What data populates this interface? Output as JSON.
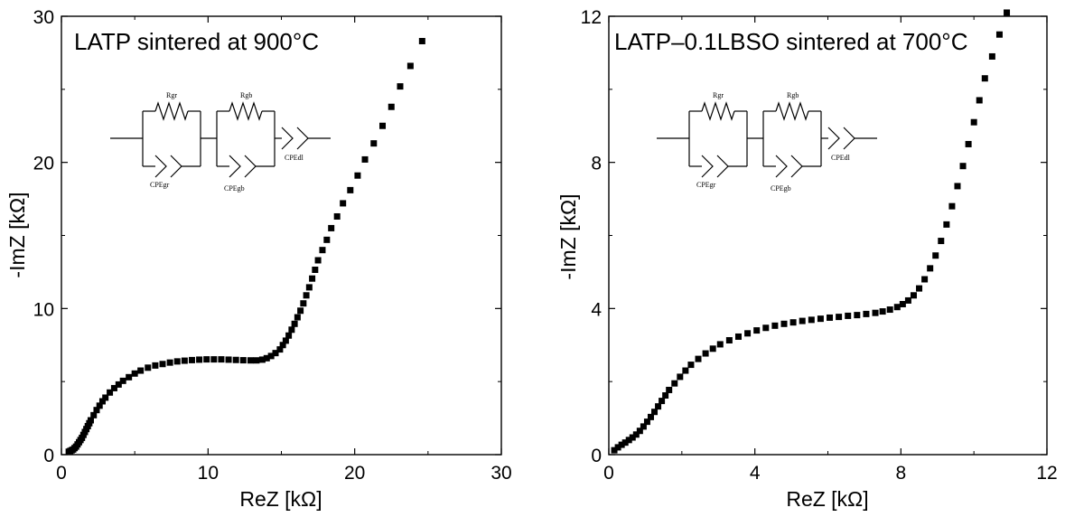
{
  "chart_data": [
    {
      "type": "scatter",
      "title": "LATP sintered at 900°C",
      "xlabel": "ReZ [kΩ]",
      "ylabel": "-ImZ [kΩ]",
      "xlim": [
        0,
        30
      ],
      "ylim": [
        0,
        30
      ],
      "xticks": [
        "0",
        "10",
        "20",
        "30"
      ],
      "yticks": [
        "0",
        "10",
        "20",
        "30"
      ],
      "grid": false,
      "marker": "square",
      "color": "#000000",
      "circuit_labels": [
        "Rgr",
        "Rgb",
        "CPEgr",
        "CPEgb",
        "CPEdl"
      ],
      "x": [
        0.5,
        0.6,
        0.7,
        0.8,
        0.9,
        1.0,
        1.1,
        1.2,
        1.3,
        1.4,
        1.5,
        1.6,
        1.7,
        1.8,
        1.9,
        2.0,
        2.2,
        2.4,
        2.6,
        2.8,
        3.0,
        3.3,
        3.6,
        3.9,
        4.2,
        4.6,
        5.0,
        5.4,
        5.9,
        6.4,
        6.9,
        7.4,
        7.9,
        8.4,
        8.9,
        9.4,
        9.9,
        10.4,
        10.9,
        11.4,
        11.9,
        12.4,
        12.9,
        13.3,
        13.7,
        14.0,
        14.3,
        14.6,
        14.9,
        15.1,
        15.3,
        15.5,
        15.7,
        15.9,
        16.1,
        16.3,
        16.5,
        16.7,
        16.9,
        17.1,
        17.3,
        17.5,
        17.8,
        18.1,
        18.4,
        18.8,
        19.2,
        19.7,
        20.2,
        20.7,
        21.3,
        21.9,
        22.5,
        23.1,
        23.8,
        24.6
      ],
      "y": [
        0.2,
        0.25,
        0.3,
        0.35,
        0.45,
        0.55,
        0.7,
        0.85,
        1.0,
        1.15,
        1.35,
        1.55,
        1.75,
        1.95,
        2.15,
        2.35,
        2.7,
        3.05,
        3.35,
        3.65,
        3.9,
        4.25,
        4.55,
        4.8,
        5.05,
        5.3,
        5.55,
        5.75,
        5.95,
        6.1,
        6.2,
        6.3,
        6.38,
        6.43,
        6.47,
        6.5,
        6.52,
        6.52,
        6.52,
        6.5,
        6.48,
        6.46,
        6.45,
        6.45,
        6.5,
        6.6,
        6.75,
        6.95,
        7.2,
        7.5,
        7.8,
        8.15,
        8.55,
        8.95,
        9.4,
        9.85,
        10.35,
        10.9,
        11.45,
        12.05,
        12.65,
        13.3,
        14.0,
        14.7,
        15.5,
        16.3,
        17.2,
        18.1,
        19.1,
        20.2,
        21.3,
        22.5,
        23.8,
        25.2,
        26.6,
        28.3
      ]
    },
    {
      "type": "scatter",
      "title": "LATP–0.1LBSO sintered at 700°C",
      "xlabel": "ReZ [kΩ]",
      "ylabel": "-ImZ [kΩ]",
      "xlim": [
        0,
        12
      ],
      "ylim": [
        0,
        12
      ],
      "xticks": [
        "0",
        "4",
        "8",
        "12"
      ],
      "yticks": [
        "0",
        "4",
        "8",
        "12"
      ],
      "grid": false,
      "marker": "square",
      "color": "#000000",
      "circuit_labels": [
        "Rgr",
        "Rgb",
        "CPEgr",
        "CPEgb",
        "CPEdl"
      ],
      "x": [
        0.15,
        0.25,
        0.35,
        0.45,
        0.55,
        0.65,
        0.75,
        0.85,
        0.95,
        1.05,
        1.15,
        1.25,
        1.35,
        1.45,
        1.55,
        1.65,
        1.8,
        1.95,
        2.1,
        2.25,
        2.45,
        2.65,
        2.85,
        3.05,
        3.3,
        3.55,
        3.8,
        4.05,
        4.3,
        4.55,
        4.8,
        5.05,
        5.3,
        5.55,
        5.8,
        6.05,
        6.3,
        6.55,
        6.8,
        7.05,
        7.3,
        7.5,
        7.7,
        7.9,
        8.05,
        8.2,
        8.35,
        8.5,
        8.65,
        8.8,
        8.95,
        9.1,
        9.25,
        9.4,
        9.55,
        9.7,
        9.85,
        10.0,
        10.15,
        10.3,
        10.5,
        10.7,
        10.9,
        11.1
      ],
      "y": [
        0.12,
        0.2,
        0.27,
        0.33,
        0.4,
        0.47,
        0.55,
        0.65,
        0.77,
        0.9,
        1.03,
        1.17,
        1.32,
        1.47,
        1.62,
        1.77,
        1.95,
        2.13,
        2.3,
        2.46,
        2.62,
        2.77,
        2.9,
        3.02,
        3.13,
        3.23,
        3.32,
        3.4,
        3.47,
        3.53,
        3.58,
        3.62,
        3.66,
        3.69,
        3.72,
        3.75,
        3.77,
        3.8,
        3.82,
        3.85,
        3.88,
        3.92,
        3.97,
        4.04,
        4.12,
        4.22,
        4.36,
        4.55,
        4.8,
        5.1,
        5.45,
        5.85,
        6.3,
        6.8,
        7.35,
        7.9,
        8.5,
        9.1,
        9.7,
        10.3,
        10.9,
        11.5,
        12.1,
        12.7
      ]
    }
  ]
}
